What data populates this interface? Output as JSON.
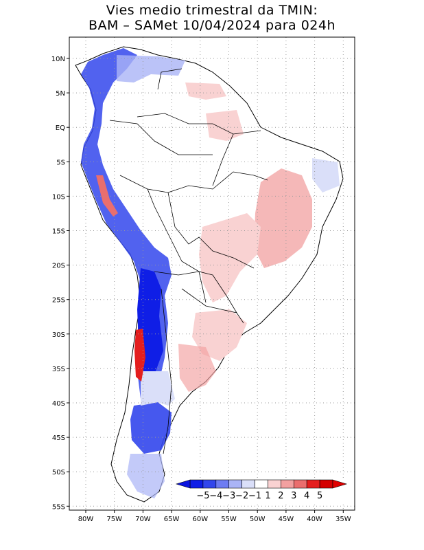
{
  "title": {
    "line1": "Vies medio trimestral da TMIN:",
    "line2": "BAM – SAMet 10/04/2024  para 024h"
  },
  "lon_ticks": [
    "80W",
    "75W",
    "70W",
    "65W",
    "60W",
    "55W",
    "50W",
    "45W",
    "40W",
    "35W"
  ],
  "lat_ticks": [
    "10N",
    "5N",
    "EQ",
    "5S",
    "10S",
    "15S",
    "20S",
    "25S",
    "30S",
    "35S",
    "40S",
    "45S",
    "50S",
    "55S"
  ],
  "colorbar": {
    "labels": [
      "−5",
      "−4",
      "−3",
      "−2",
      "−1",
      "1",
      "2",
      "3",
      "4",
      "5"
    ],
    "colors": [
      "#0f1ee6",
      "#3246ec",
      "#6e7cf2",
      "#aab4f6",
      "#dadff9",
      "#ffffff",
      "#f9d2d2",
      "#f2a0a0",
      "#ea6e6e",
      "#e41e1e",
      "#d40000"
    ],
    "left_arrow_color": "#0a14e0",
    "right_arrow_color": "#e00000"
  },
  "grid": "dotted"
}
